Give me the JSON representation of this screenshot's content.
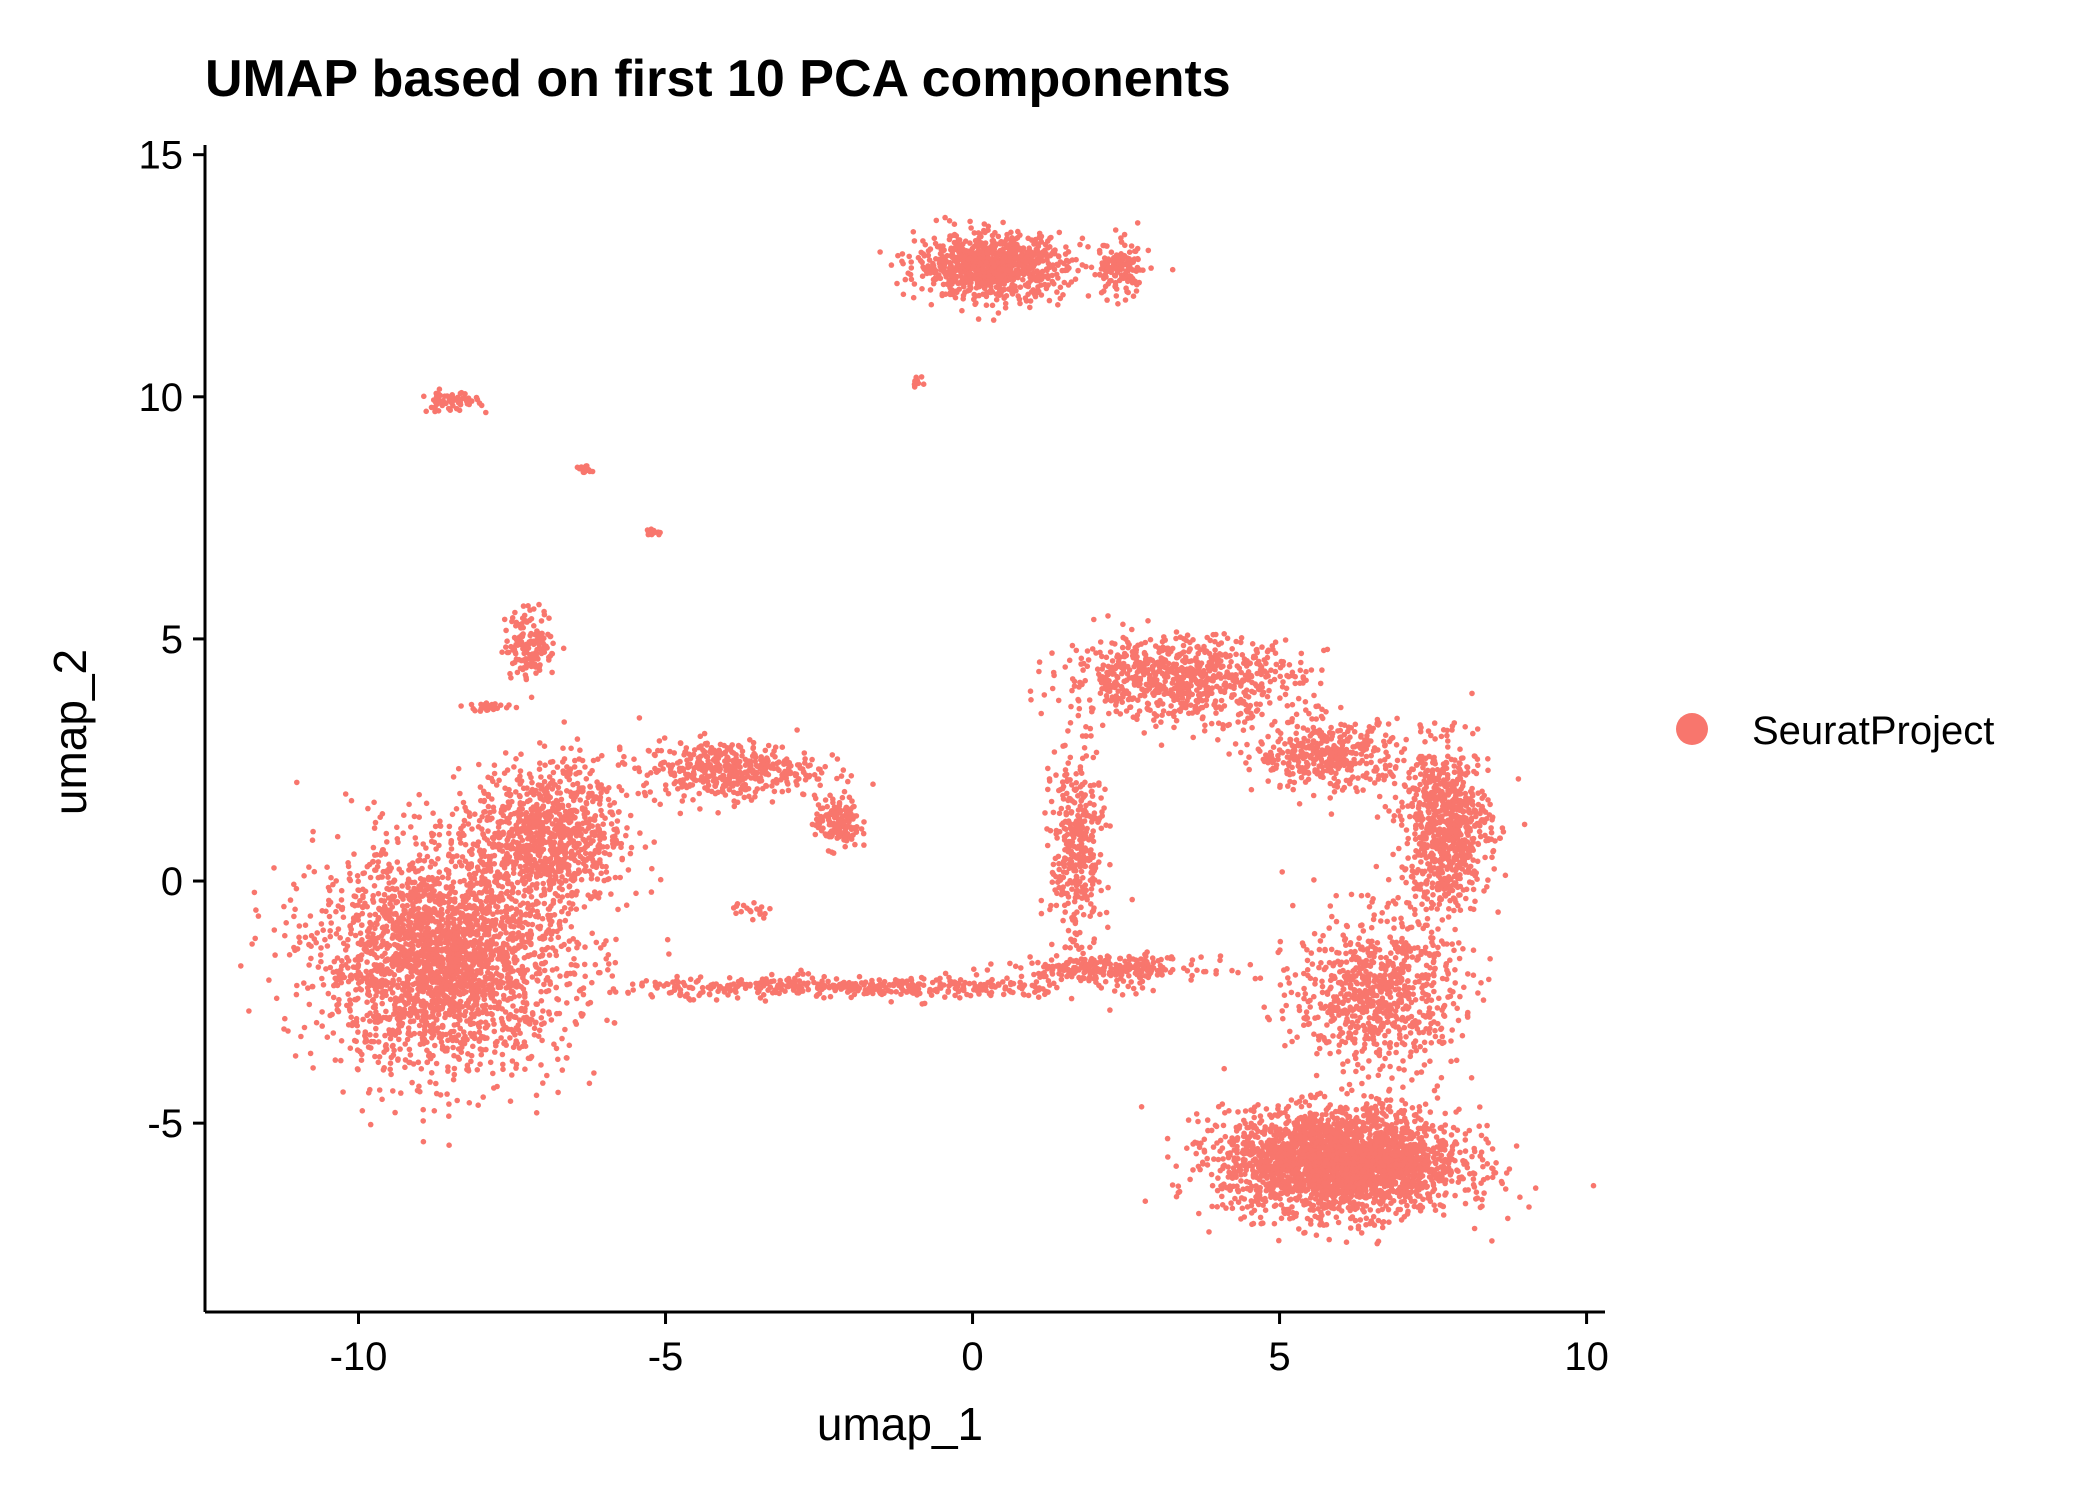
{
  "chart_data": {
    "type": "scatter",
    "title": "UMAP based on first 10 PCA components",
    "xlabel": "umap_1",
    "ylabel": "umap_2",
    "xlim": [
      -12.5,
      10.3
    ],
    "ylim": [
      -8.9,
      15.2
    ],
    "x_ticks": [
      -10,
      -5,
      0,
      5,
      10
    ],
    "y_ticks": [
      -5,
      0,
      5,
      10,
      15
    ],
    "x_tick_labels": [
      "-10",
      "-5",
      "0",
      "5",
      "10"
    ],
    "y_tick_labels": [
      "-5",
      "0",
      "5",
      "10",
      "15"
    ],
    "grid": false,
    "legend": {
      "position": "right",
      "entries": [
        {
          "label": "SeuratProject",
          "color": "#F8766D"
        }
      ]
    },
    "series": [
      {
        "name": "SeuratProject",
        "color": "#F8766D",
        "clusters": [
          {
            "region": "left-main",
            "center": [
              -8.6,
              -1.6
            ],
            "spread": [
              1.7,
              1.9
            ],
            "count": 2600
          },
          {
            "region": "left-upper",
            "center": [
              -6.9,
              1.0
            ],
            "spread": [
              1.0,
              1.2
            ],
            "count": 900
          },
          {
            "region": "left-arm",
            "center": [
              -4.0,
              2.3
            ],
            "spread": [
              1.2,
              0.5
            ],
            "count": 450
          },
          {
            "region": "left-arm-tip",
            "center": [
              -2.2,
              1.2
            ],
            "spread": [
              0.3,
              0.45
            ],
            "count": 160
          },
          {
            "region": "left-stem",
            "center": [
              -7.2,
              4.9
            ],
            "spread": [
              0.35,
              0.6
            ],
            "count": 160
          },
          {
            "region": "bridge",
            "center": [
              -2.0,
              -2.2
            ],
            "spread": [
              3.2,
              0.18
            ],
            "count": 420
          },
          {
            "region": "bridge-right",
            "center": [
              2.2,
              -1.8
            ],
            "spread": [
              1.3,
              0.2
            ],
            "count": 260
          },
          {
            "region": "center-column",
            "center": [
              1.7,
              0.6
            ],
            "spread": [
              0.35,
              1.8
            ],
            "count": 380
          },
          {
            "region": "right-top",
            "center": [
              3.4,
              4.2
            ],
            "spread": [
              1.6,
              0.7
            ],
            "count": 800
          },
          {
            "region": "right-upper-mid",
            "center": [
              5.8,
              2.6
            ],
            "spread": [
              1.0,
              0.6
            ],
            "count": 400
          },
          {
            "region": "right-arm",
            "center": [
              7.7,
              1.1
            ],
            "spread": [
              0.6,
              1.4
            ],
            "count": 800
          },
          {
            "region": "right-middle",
            "center": [
              6.6,
              -2.3
            ],
            "spread": [
              1.1,
              1.3
            ],
            "count": 800
          },
          {
            "region": "right-bottom",
            "center": [
              6.0,
              -5.8
            ],
            "spread": [
              1.6,
              0.9
            ],
            "count": 2700
          },
          {
            "region": "top",
            "center": [
              0.3,
              12.7
            ],
            "spread": [
              1.0,
              0.55
            ],
            "count": 900
          },
          {
            "region": "top-tail",
            "center": [
              2.4,
              12.6
            ],
            "spread": [
              0.4,
              0.5
            ],
            "count": 140
          },
          {
            "region": "small-upper-left",
            "center": [
              -8.5,
              9.9
            ],
            "spread": [
              0.4,
              0.18
            ],
            "count": 60
          },
          {
            "region": "small-dot-1",
            "center": [
              -6.3,
              8.5
            ],
            "spread": [
              0.1,
              0.05
            ],
            "count": 20
          },
          {
            "region": "small-dot-2",
            "center": [
              -5.2,
              7.2
            ],
            "spread": [
              0.12,
              0.05
            ],
            "count": 20
          },
          {
            "region": "small-dot-3",
            "center": [
              -0.9,
              10.3
            ],
            "spread": [
              0.08,
              0.12
            ],
            "count": 14
          },
          {
            "region": "small-dot-4",
            "center": [
              -3.6,
              -0.6
            ],
            "spread": [
              0.25,
              0.15
            ],
            "count": 18
          },
          {
            "region": "small-dot-5",
            "center": [
              -7.9,
              3.6
            ],
            "spread": [
              0.35,
              0.08
            ],
            "count": 30
          }
        ]
      }
    ]
  }
}
